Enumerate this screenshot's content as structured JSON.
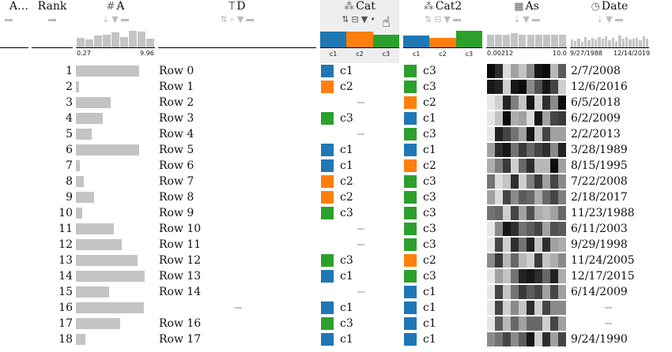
{
  "colors": {
    "c1": "#1f77b4",
    "c2": "#ff7f0e",
    "c3": "#2ca02c",
    "bar": "#c4c4c4"
  },
  "columns": {
    "a": {
      "label": "A…"
    },
    "rank": {
      "label": "Rank"
    },
    "A": {
      "label": "A",
      "icon": "hash-icon",
      "axis_min": "0.27",
      "axis_max": "9.96",
      "hist": [
        0.55,
        0.45,
        0.7,
        0.75,
        0.85,
        0.6,
        0.95,
        0.9,
        0.5
      ]
    },
    "D": {
      "label": "D",
      "icon": "text-icon"
    },
    "Cat": {
      "label": "Cat",
      "icon": "categorical-icon",
      "labels": [
        "c1",
        "c2",
        "c3"
      ],
      "dist": [
        {
          "cat": "c1",
          "h": 0.9
        },
        {
          "cat": "c2",
          "h": 0.9
        },
        {
          "cat": "c3",
          "h": 0.75
        }
      ]
    },
    "Cat2": {
      "label": "Cat2",
      "icon": "categorical-icon",
      "labels": [
        "c1",
        "c2",
        "c3"
      ],
      "dist": [
        {
          "cat": "c1",
          "h": 0.7
        },
        {
          "cat": "c2",
          "h": 0.55
        },
        {
          "cat": "c3",
          "h": 0.95
        }
      ]
    },
    "As": {
      "label": "As",
      "icon": "matrix-icon",
      "axis_min": "0.00212",
      "axis_max": "10.0",
      "hist": [
        0.75,
        0.75,
        0.75,
        0.8,
        0.75,
        0.75,
        0.75,
        0.75,
        0.75,
        0.75
      ]
    },
    "Date": {
      "label": "Date",
      "icon": "clock-icon",
      "axis_min": "9/27/1988",
      "axis_max": "12/14/2019",
      "hist": [
        0.45,
        0.35,
        0.5,
        0.3,
        0.6,
        0.4,
        0.55,
        0.45,
        0.6,
        0.5,
        0.65,
        0.4,
        0.55,
        0.35,
        0.7,
        0.5,
        0.6,
        0.45,
        0.5,
        0.55,
        0.4,
        0.65,
        0.5
      ]
    }
  },
  "rows": [
    {
      "rank": "1",
      "a": 0.8,
      "d": "Row 0",
      "cat": "c1",
      "cat2": "c3",
      "as": [
        0.05,
        0.2,
        0.95,
        0.7,
        0.85,
        0.6,
        0.1,
        0.05,
        0.8,
        0.4
      ],
      "date": "2/7/2008"
    },
    {
      "rank": "2",
      "a": 0.04,
      "d": "Row 1",
      "cat": "c2",
      "cat2": "c3",
      "as": [
        0.1,
        0.15,
        0.9,
        0.1,
        0.05,
        0.6,
        0.35,
        0.1,
        0.3,
        0.9
      ],
      "date": "12/6/2016"
    },
    {
      "rank": "3",
      "a": 0.44,
      "d": "Row 2",
      "cat": null,
      "cat2": "c2",
      "as": [
        1,
        0.9,
        0.15,
        0.55,
        0.85,
        0.1,
        0.9,
        0.2,
        0.6,
        0.05
      ],
      "date": "6/5/2018"
    },
    {
      "rank": "4",
      "a": 0.34,
      "d": "Row 3",
      "cat": "c3",
      "cat2": "c1",
      "as": [
        1,
        0.85,
        0.05,
        0.75,
        0.7,
        0.95,
        0.1,
        0.7,
        0.3,
        0.25
      ],
      "date": "6/2/2009"
    },
    {
      "rank": "5",
      "a": 0.2,
      "d": "Row 4",
      "cat": null,
      "cat2": "c3",
      "as": [
        1,
        0.15,
        0.3,
        0.5,
        0.7,
        0.1,
        0.85,
        0.3,
        0.7,
        0.7
      ],
      "date": "2/2/2013"
    },
    {
      "rank": "6",
      "a": 0.8,
      "d": "Row 5",
      "cat": "c1",
      "cat2": "c1",
      "as": [
        0.7,
        0.2,
        0.1,
        0.5,
        0.25,
        0.45,
        0.3,
        0.2,
        0.6,
        0.15
      ],
      "date": "3/28/1989"
    },
    {
      "rank": "7",
      "a": 0.05,
      "d": "Row 6",
      "cat": "c1",
      "cat2": "c2",
      "as": [
        0.75,
        0.55,
        0.25,
        0.9,
        0.45,
        0.2,
        0.8,
        0.8,
        0.05,
        0.7
      ],
      "date": "8/15/1995"
    },
    {
      "rank": "8",
      "a": 0.1,
      "d": "Row 7",
      "cat": "c2",
      "cat2": "c3",
      "as": [
        0.5,
        0.95,
        0.85,
        0.2,
        0.9,
        0.55,
        0.25,
        0.7,
        0.3,
        0.6
      ],
      "date": "7/22/2008"
    },
    {
      "rank": "9",
      "a": 0.23,
      "d": "Row 8",
      "cat": "c2",
      "cat2": "c3",
      "as": [
        0.7,
        0.95,
        0.3,
        0.6,
        0.4,
        0.45,
        0.75,
        0.45,
        0.3,
        0.55
      ],
      "date": "2/18/2017"
    },
    {
      "rank": "10",
      "a": 0.08,
      "d": "Row 9",
      "cat": "c3",
      "cat2": "c3",
      "as": [
        0.5,
        0.45,
        0.9,
        0.3,
        0.7,
        0.35,
        0.75,
        0.8,
        0.7,
        0.45
      ],
      "date": "11/23/1988"
    },
    {
      "rank": "11",
      "a": 0.48,
      "d": "Row 10",
      "cat": null,
      "cat2": "c3",
      "as": [
        1,
        0.6,
        0.1,
        0.2,
        0.5,
        0.4,
        0.3,
        0.7,
        0.35,
        0.4
      ],
      "date": "6/11/2003"
    },
    {
      "rank": "12",
      "a": 0.58,
      "d": "Row 11",
      "cat": null,
      "cat2": "c3",
      "as": [
        1,
        0.3,
        0.9,
        0.2,
        0.5,
        0.15,
        0.85,
        0.2,
        0.7,
        0.75
      ],
      "date": "9/29/1998"
    },
    {
      "rank": "13",
      "a": 0.78,
      "d": "Row 12",
      "cat": "c3",
      "cat2": "c2",
      "as": [
        0.6,
        0.25,
        0.8,
        0.45,
        0.8,
        0.9,
        0.25,
        0.85,
        0.75,
        0.6
      ],
      "date": "11/24/2005"
    },
    {
      "rank": "14",
      "a": 0.87,
      "d": "Row 13",
      "cat": "c1",
      "cat2": "c3",
      "as": [
        1,
        0.7,
        0.85,
        0.5,
        0.15,
        0.1,
        0.2,
        0.45,
        0.15,
        0.75
      ],
      "date": "12/17/2015"
    },
    {
      "rank": "15",
      "a": 0.42,
      "d": "Row 14",
      "cat": null,
      "cat2": "c1",
      "as": [
        1,
        0.3,
        0.85,
        0.5,
        0.25,
        0.4,
        0.3,
        0.7,
        0.3,
        0.7
      ],
      "date": "6/14/2009"
    },
    {
      "rank": "16",
      "a": 0.86,
      "d": null,
      "cat": "c1",
      "cat2": "c1",
      "as": [
        1,
        0.3,
        0.9,
        0.6,
        0.85,
        0.2,
        0.9,
        0.3,
        0.6,
        0.6
      ],
      "date": null
    },
    {
      "rank": "17",
      "a": 0.56,
      "d": "Row 16",
      "cat": "c3",
      "cat2": "c1",
      "as": [
        1,
        0.4,
        0.8,
        0.45,
        0.7,
        0.45,
        0.45,
        0.9,
        0.3,
        0.7
      ],
      "date": null
    },
    {
      "rank": "18",
      "a": 0.12,
      "d": "Row 17",
      "cat": "c1",
      "cat2": "c1",
      "as": [
        0.6,
        0.5,
        0.3,
        0.6,
        0.4,
        0.1,
        0.9,
        0.2,
        0.7,
        0.3
      ],
      "date": "9/24/1990"
    }
  ]
}
